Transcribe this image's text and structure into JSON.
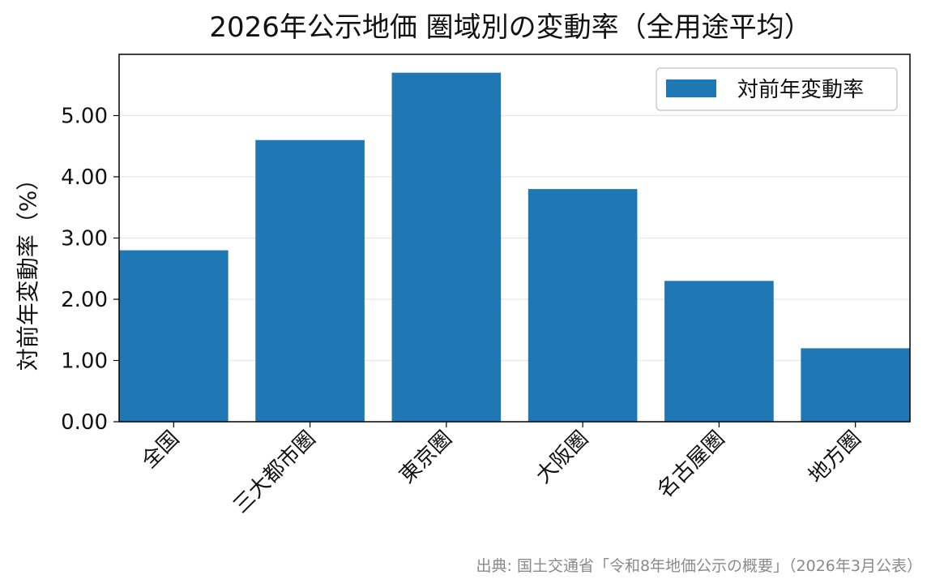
{
  "chart_data": {
    "type": "bar",
    "title": "2026年公示地価 圏域別の変動率（全用途平均）",
    "xlabel": "",
    "ylabel": "対前年変動率（%）",
    "categories": [
      "全国",
      "三大都市圏",
      "東京圏",
      "大阪圏",
      "名古屋圏",
      "地方圏"
    ],
    "series": [
      {
        "name": "対前年変動率",
        "values": [
          2.8,
          4.6,
          5.7,
          3.8,
          2.3,
          1.2
        ],
        "color": "#1f77b4"
      }
    ],
    "ylim": [
      0,
      6
    ],
    "yticks": [
      "0.00",
      "1.00",
      "2.00",
      "3.00",
      "4.00",
      "5.00"
    ],
    "grid": "horizontal",
    "legend_position": "top-right"
  },
  "source_note": "出典: 国土交通省「令和8年地価公示の概要」（2026年3月公表）"
}
